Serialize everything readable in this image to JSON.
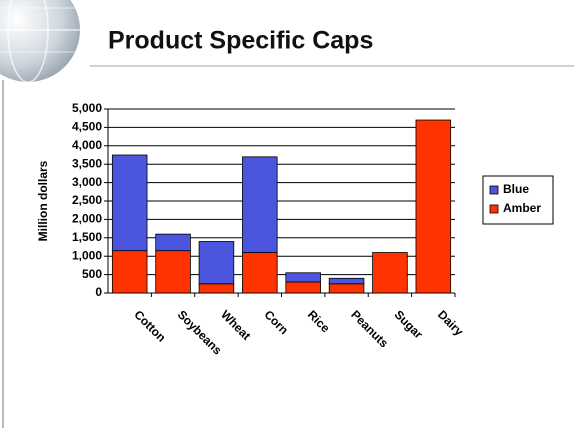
{
  "chart_data": {
    "type": "stacked-bar",
    "title": "Product Specific Caps",
    "y_label": "Million dollars",
    "categories": [
      "Cotton",
      "Soybeans",
      "Wheat",
      "Corn",
      "Rice",
      "Peanuts",
      "Sugar",
      "Dairy"
    ],
    "series": [
      {
        "name": "Amber",
        "color": "#ff3300",
        "values": [
          1150,
          1150,
          250,
          1100,
          300,
          250,
          1100,
          4700
        ]
      },
      {
        "name": "Blue",
        "color": "#4b55dd",
        "values": [
          2600,
          450,
          1150,
          2600,
          250,
          150,
          null,
          null
        ]
      }
    ],
    "ylim": [
      0,
      5000
    ],
    "yticks": [
      0,
      {
        "value": 500,
        "label": "500"
      },
      {
        "value": 1000,
        "label": "1,000"
      },
      {
        "value": 1500,
        "label": "1,500"
      },
      {
        "value": 2000,
        "label": "2,000"
      },
      {
        "value": 2500,
        "label": "2,500"
      },
      {
        "value": 3000,
        "label": "3,000"
      },
      {
        "value": 3500,
        "label": "3,500"
      },
      {
        "value": 4000,
        "label": "4,000"
      },
      {
        "value": 4500,
        "label": "4,500"
      },
      {
        "value": 5000,
        "label": "5,000"
      }
    ],
    "grid": true,
    "legend": "right"
  }
}
